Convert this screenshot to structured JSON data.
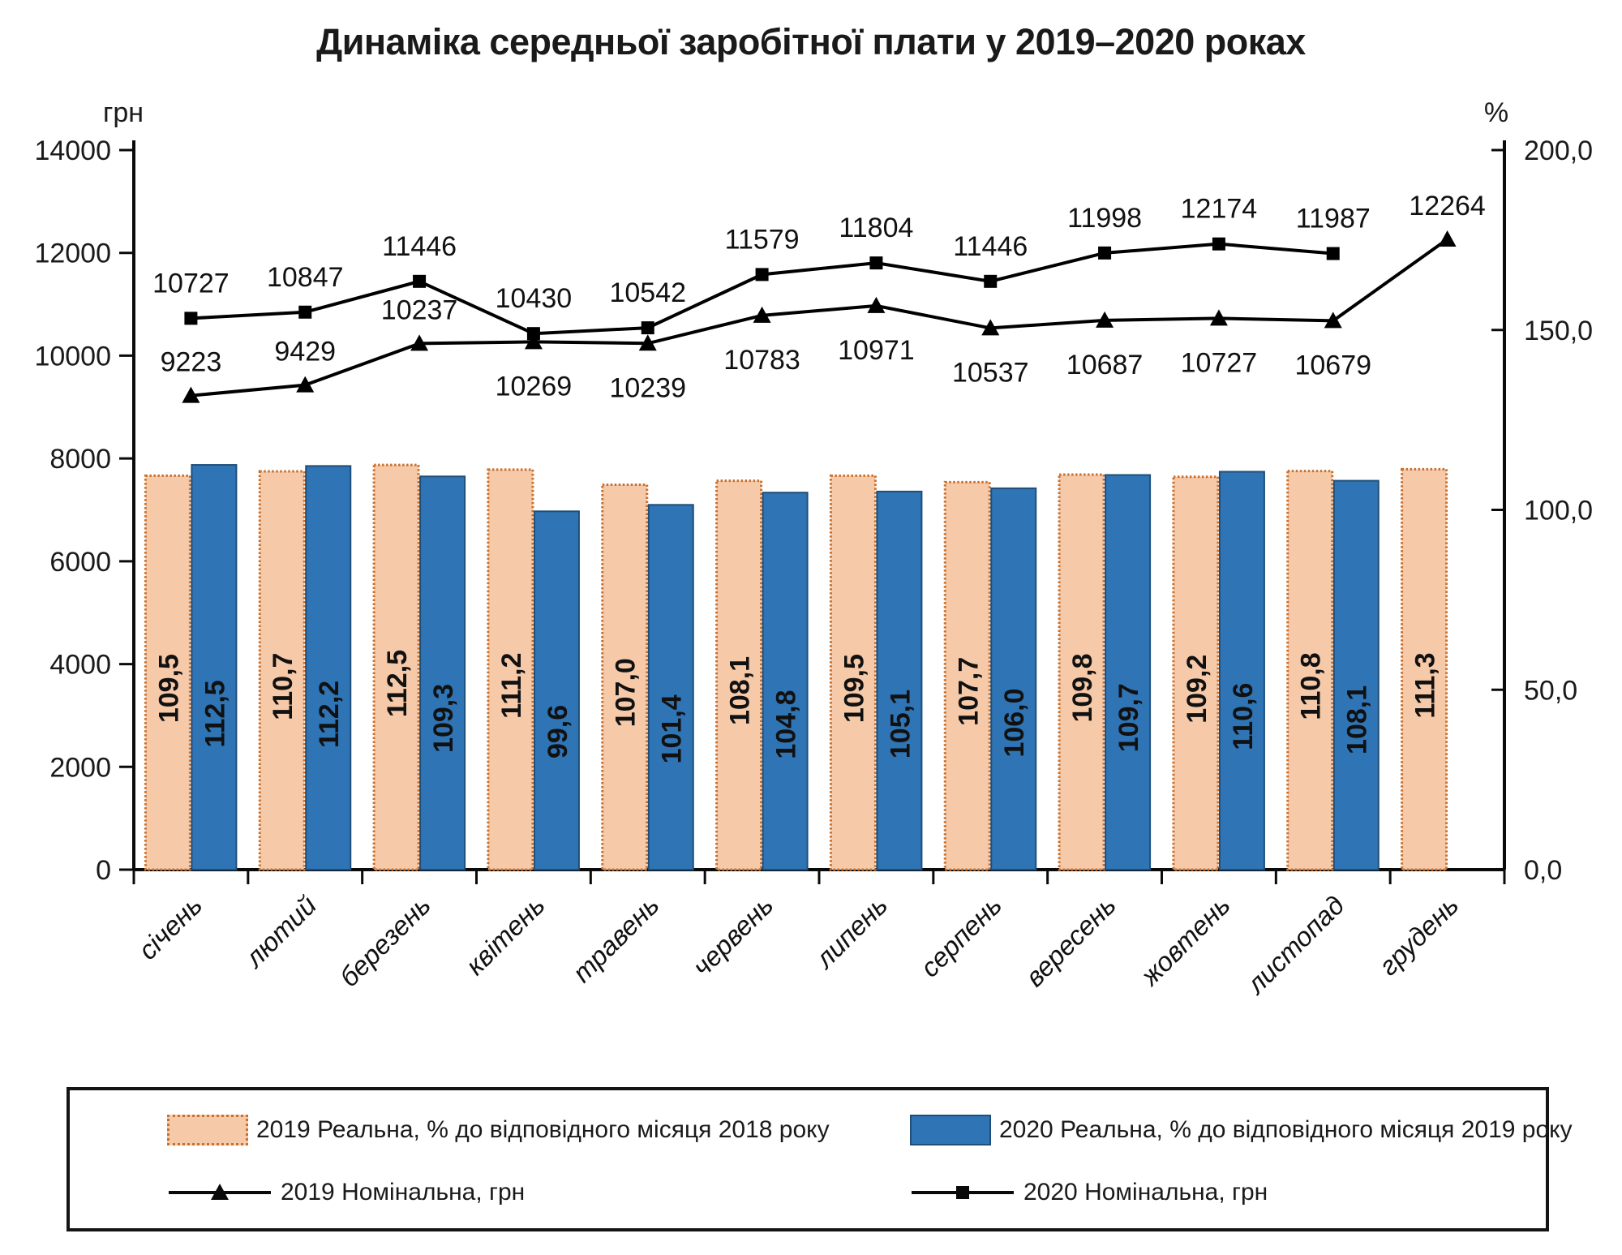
{
  "title": "Динаміка середньої заробітної плати у 2019–2020 роках",
  "chart_data": {
    "type": "combo-bar-line",
    "categories": [
      "січень",
      "лютий",
      "березень",
      "квітень",
      "травень",
      "червень",
      "липень",
      "серпень",
      "вересень",
      "жовтень",
      "листопад",
      "грудень"
    ],
    "left_axis": {
      "unit": "грн",
      "min": 0,
      "max": 14000,
      "ticks": [
        "0",
        "2000",
        "4000",
        "6000",
        "8000",
        "10000",
        "12000",
        "14000"
      ]
    },
    "right_axis": {
      "unit": "%",
      "min": 0,
      "max": 200,
      "ticks": [
        "0,0",
        "50,0",
        "100,0",
        "150,0",
        "200,0"
      ]
    },
    "legend_position": "bottom",
    "grid": "off",
    "series": [
      {
        "name": "2019 Реальна, % до відповідного місяця 2018 року",
        "type": "bar",
        "axis": "right",
        "fill": "#F6C9A8",
        "stroke": "#C8702F",
        "border_style": "dotted",
        "values_pct": [
          "109,5",
          "110,7",
          "112,5",
          "111,2",
          "107,0",
          "108,1",
          "109,5",
          "107,7",
          "109,8",
          "109,2",
          "110,8",
          "111,3"
        ]
      },
      {
        "name": "2020 Реальна, % до відповідного місяця 2019 року",
        "type": "bar",
        "axis": "right",
        "fill": "#2F74B5",
        "stroke": "#1F4E79",
        "border_style": "solid",
        "values_pct": [
          "112,5",
          "112,2",
          "109,3",
          "99,6",
          "101,4",
          "104,8",
          "105,1",
          "106,0",
          "109,7",
          "110,6",
          "108,1"
        ]
      },
      {
        "name": "2019 Номінальна, грн",
        "type": "line",
        "axis": "left",
        "marker": "triangle",
        "color": "#000000",
        "values": [
          9223,
          9429,
          10237,
          10269,
          10239,
          10783,
          10971,
          10537,
          10687,
          10727,
          10679,
          12264
        ],
        "label_positions": [
          "above",
          "above",
          "above",
          "below",
          "below",
          "below",
          "below",
          "below",
          "below",
          "below",
          "below",
          "above"
        ]
      },
      {
        "name": "2020 Номінальна, грн",
        "type": "line",
        "axis": "left",
        "marker": "square",
        "color": "#000000",
        "values": [
          10727,
          10847,
          11446,
          10430,
          10542,
          11579,
          11804,
          11446,
          11998,
          12174,
          11987
        ],
        "label_positions": [
          "above",
          "above",
          "above",
          "above",
          "above",
          "above",
          "above",
          "above",
          "above",
          "above",
          "above"
        ]
      }
    ]
  }
}
